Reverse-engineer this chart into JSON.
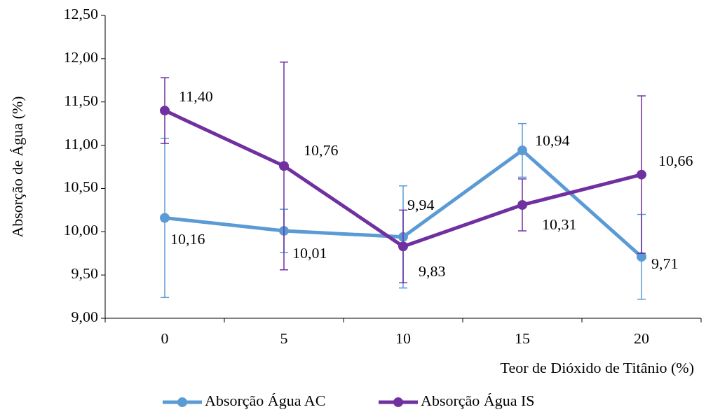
{
  "chart_data": {
    "type": "line",
    "xlabel": "Teor de Dióxido de Titânio (%)",
    "ylabel": "Absorção de Água (%)",
    "categories": [
      "0",
      "5",
      "10",
      "15",
      "20"
    ],
    "ylim": [
      9,
      12.5
    ],
    "yticks": [
      {
        "value": 9,
        "label": "9,00"
      },
      {
        "value": 9.5,
        "label": "9,50"
      },
      {
        "value": 10,
        "label": "10,00"
      },
      {
        "value": 10.5,
        "label": "10,50"
      },
      {
        "value": 11,
        "label": "11,00"
      },
      {
        "value": 11.5,
        "label": "11,50"
      },
      {
        "value": 12,
        "label": "12,00"
      },
      {
        "value": 12.5,
        "label": "12,50"
      }
    ],
    "grid": false,
    "legend": "bottom",
    "marker": "circle",
    "line_style": "solid",
    "series": [
      {
        "name": "Absorção Água AC",
        "color": "#5b9bd5",
        "values": [
          10.16,
          10.01,
          9.94,
          10.94,
          9.71
        ],
        "errors": [
          0.92,
          0.25,
          0.59,
          0.31,
          0.49
        ],
        "value_labels": [
          "10,16",
          "10,01",
          "9,94",
          "10,94",
          "9,71"
        ]
      },
      {
        "name": "Absorção Água IS",
        "color": "#7030a0",
        "values": [
          11.4,
          10.76,
          9.83,
          10.31,
          10.66
        ],
        "errors": [
          0.38,
          1.2,
          0.42,
          0.3,
          0.91
        ],
        "value_labels": [
          "11,40",
          "10,76",
          "9,83",
          "10,31",
          "10,66"
        ]
      }
    ]
  }
}
